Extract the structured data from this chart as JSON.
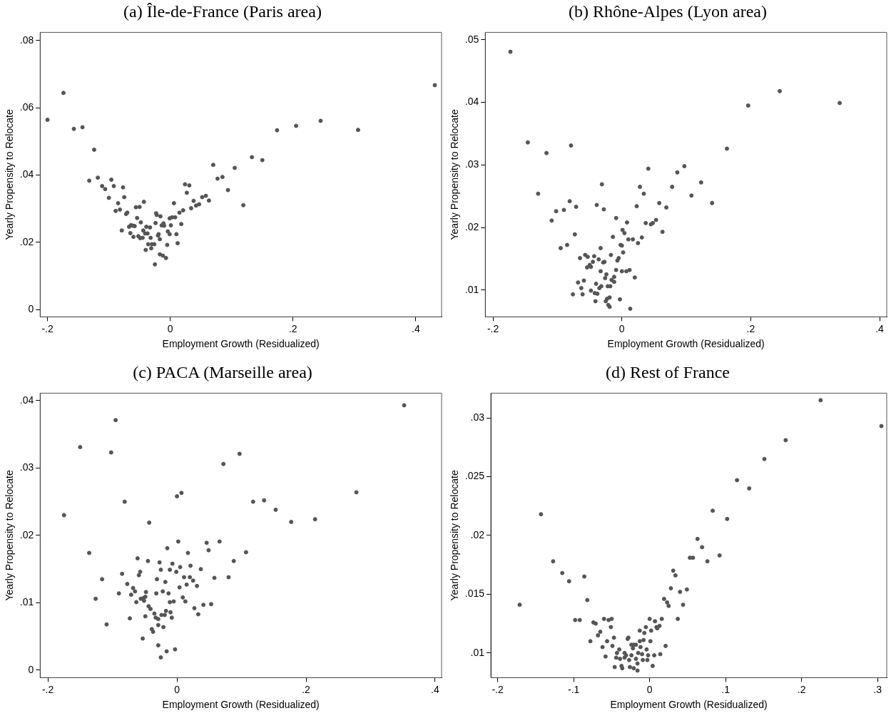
{
  "chart_data": [
    {
      "type": "scatter",
      "title": "(a) Île-de-France (Paris area)",
      "xlabel": "Employment Growth (Residualized)",
      "ylabel": "Yearly Propensity to Relocate",
      "color": "#555555",
      "marker": "circle",
      "xlim": [
        -0.212,
        0.442
      ],
      "ylim": [
        -0.0022,
        0.0824
      ],
      "xticks": [
        {
          "value": -0.2,
          "label": "-.2"
        },
        {
          "value": 0,
          "label": "0"
        },
        {
          "value": 0.2,
          "label": ".2"
        },
        {
          "value": 0.4,
          "label": ".4"
        }
      ],
      "yticks": [
        {
          "value": 0,
          "label": "0"
        },
        {
          "value": 0.02,
          "label": ".02"
        },
        {
          "value": 0.04,
          "label": ".04"
        },
        {
          "value": 0.06,
          "label": ".06"
        },
        {
          "value": 0.08,
          "label": ".08"
        }
      ],
      "x": [
        -0.2,
        -0.174,
        -0.157,
        -0.143,
        -0.124,
        -0.132,
        -0.118,
        -0.096,
        -0.111,
        -0.106,
        -0.092,
        -0.077,
        -0.1,
        -0.075,
        -0.085,
        -0.089,
        -0.082,
        -0.072,
        -0.07,
        -0.056,
        -0.05,
        -0.043,
        -0.054,
        -0.048,
        -0.079,
        -0.067,
        -0.064,
        -0.061,
        -0.058,
        -0.065,
        -0.06,
        -0.052,
        -0.049,
        -0.045,
        -0.044,
        -0.041,
        -0.037,
        -0.039,
        -0.033,
        -0.032,
        -0.036,
        -0.03,
        -0.026,
        -0.031,
        -0.04,
        -0.023,
        -0.022,
        -0.016,
        -0.024,
        -0.014,
        -0.011,
        -0.01,
        -0.02,
        -0.019,
        -0.017,
        -0.017,
        -0.012,
        -0.007,
        -0.025,
        -0.005,
        -0.004,
        -0.001,
        0.001,
        -0.001,
        0.003,
        0.008,
        0.006,
        0.01,
        0.012,
        0.015,
        0.018,
        0.021,
        0.024,
        0.031,
        0.027,
        0.034,
        0.038,
        0.042,
        0.047,
        0.052,
        0.058,
        0.063,
        0.07,
        0.077,
        0.085,
        0.094,
        0.105,
        0.119,
        0.133,
        0.15,
        0.174,
        0.205,
        0.245,
        0.306,
        0.431
      ],
      "values": [
        0.0564,
        0.0644,
        0.0537,
        0.0542,
        0.0475,
        0.0383,
        0.0392,
        0.0386,
        0.0367,
        0.0358,
        0.0367,
        0.0363,
        0.0332,
        0.0334,
        0.0316,
        0.0293,
        0.0297,
        0.0284,
        0.0288,
        0.0304,
        0.0305,
        0.032,
        0.0272,
        0.0259,
        0.0235,
        0.0246,
        0.0251,
        0.0249,
        0.0248,
        0.0227,
        0.0216,
        0.0218,
        0.0212,
        0.0213,
        0.0235,
        0.0226,
        0.0226,
        0.0246,
        0.0244,
        0.0213,
        0.0194,
        0.0194,
        0.0194,
        0.0182,
        0.0177,
        0.0286,
        0.0281,
        0.0277,
        0.0257,
        0.025,
        0.0256,
        0.0249,
        0.022,
        0.0224,
        0.0209,
        0.0164,
        0.016,
        0.0153,
        0.0134,
        0.0192,
        0.0232,
        0.0224,
        0.025,
        0.0271,
        0.0274,
        0.0274,
        0.0316,
        0.0224,
        0.0197,
        0.0288,
        0.0254,
        0.0295,
        0.0372,
        0.0369,
        0.0347,
        0.0301,
        0.0323,
        0.0309,
        0.0313,
        0.0334,
        0.0338,
        0.0324,
        0.043,
        0.0389,
        0.0394,
        0.0355,
        0.0421,
        0.031,
        0.0453,
        0.0444,
        0.0533,
        0.0546,
        0.0561,
        0.0534,
        0.0667
      ]
    },
    {
      "type": "scatter",
      "title": "(b) Rhône-Alpes (Lyon area)",
      "xlabel": "Employment Growth (Residualized)",
      "ylabel": "Yearly Propensity to Relocate",
      "color": "#555555",
      "marker": "circle",
      "xlim": [
        -0.212,
        0.411
      ],
      "ylim": [
        0.0057,
        0.0512
      ],
      "xticks": [
        {
          "value": -0.2,
          "label": "-.2"
        },
        {
          "value": 0,
          "label": "0"
        },
        {
          "value": 0.2,
          "label": ".2"
        },
        {
          "value": 0.4,
          "label": ".4"
        }
      ],
      "yticks": [
        {
          "value": 0.01,
          "label": ".01"
        },
        {
          "value": 0.02,
          "label": ".02"
        },
        {
          "value": 0.03,
          "label": ".03"
        },
        {
          "value": 0.04,
          "label": ".04"
        },
        {
          "value": 0.05,
          "label": ".05"
        }
      ],
      "x": [
        -0.173,
        -0.146,
        -0.117,
        -0.079,
        -0.13,
        -0.102,
        -0.09,
        -0.081,
        -0.071,
        -0.109,
        -0.073,
        -0.095,
        -0.085,
        -0.031,
        -0.039,
        -0.028,
        -0.009,
        0.008,
        0.001,
        0.004,
        -0.014,
        -0.002,
        0.0,
        0.002,
        0.01,
        0.017,
        0.025,
        0.031,
        0.023,
        0.028,
        0.034,
        0.041,
        0.037,
        0.045,
        0.048,
        0.053,
        0.058,
        0.063,
        0.069,
        0.078,
        0.086,
        0.097,
        0.108,
        0.123,
        0.14,
        0.163,
        0.196,
        0.245,
        0.338,
        -0.065,
        -0.057,
        -0.053,
        -0.043,
        -0.036,
        -0.033,
        -0.029,
        -0.027,
        -0.017,
        -0.007,
        -0.005,
        -0.045,
        -0.05,
        -0.054,
        -0.048,
        -0.033,
        -0.024,
        -0.009,
        0.0,
        0.007,
        0.012,
        0.02,
        -0.026,
        -0.012,
        -0.016,
        -0.012,
        -0.068,
        -0.059,
        -0.04,
        -0.063,
        -0.048,
        -0.035,
        -0.032,
        -0.022,
        -0.018,
        -0.076,
        -0.061,
        -0.042,
        -0.038,
        -0.041,
        -0.025,
        -0.023,
        -0.019,
        -0.003,
        -0.021,
        -0.019,
        0.013
      ],
      "values": [
        0.0481,
        0.0336,
        0.0319,
        0.0331,
        0.0254,
        0.0226,
        0.0228,
        0.0242,
        0.0233,
        0.0211,
        0.0189,
        0.0167,
        0.0172,
        0.0269,
        0.0236,
        0.0229,
        0.0215,
        0.0208,
        0.0196,
        0.0191,
        0.0185,
        0.0172,
        0.0171,
        0.016,
        0.0181,
        0.0181,
        0.0175,
        0.0184,
        0.0234,
        0.0265,
        0.0254,
        0.0294,
        0.0207,
        0.0205,
        0.0207,
        0.0212,
        0.0239,
        0.0193,
        0.0232,
        0.0265,
        0.0288,
        0.0298,
        0.0251,
        0.0272,
        0.0239,
        0.0326,
        0.0395,
        0.0418,
        0.0399,
        0.0151,
        0.0156,
        0.0153,
        0.0154,
        0.0149,
        0.0167,
        0.0144,
        0.0145,
        0.0156,
        0.0147,
        0.0151,
        0.0145,
        0.014,
        0.0136,
        0.0137,
        0.013,
        0.0125,
        0.0132,
        0.013,
        0.013,
        0.0132,
        0.012,
        0.0119,
        0.0121,
        0.0116,
        0.0113,
        0.0112,
        0.0115,
        0.011,
        0.0103,
        0.0099,
        0.0103,
        0.0106,
        0.0106,
        0.0106,
        0.0093,
        0.0093,
        0.0095,
        0.0094,
        0.0082,
        0.0082,
        0.0086,
        0.0088,
        0.0085,
        0.0076,
        0.0073,
        0.007
      ]
    },
    {
      "type": "scatter",
      "title": "(c) PACA (Marseille area)",
      "xlabel": "Employment Growth (Residualized)",
      "ylabel": "Yearly Propensity to Relocate",
      "color": "#555555",
      "marker": "circle",
      "xlim": [
        -0.212,
        0.41
      ],
      "ylim": [
        -0.0011,
        0.0411
      ],
      "xticks": [
        {
          "value": -0.2,
          "label": "-.2"
        },
        {
          "value": 0,
          "label": "0"
        },
        {
          "value": 0.2,
          "label": ".2"
        },
        {
          "value": 0.4,
          "label": ".4"
        }
      ],
      "yticks": [
        {
          "value": 0,
          "label": "0"
        },
        {
          "value": 0.01,
          "label": ".01"
        },
        {
          "value": 0.02,
          "label": ".02"
        },
        {
          "value": 0.03,
          "label": ".03"
        },
        {
          "value": 0.04,
          "label": ".04"
        }
      ],
      "x": [
        0.352,
        -0.095,
        -0.15,
        -0.102,
        0.097,
        0.072,
        0.007,
        0.0,
        -0.081,
        0.278,
        0.118,
        0.135,
        0.153,
        0.177,
        0.214,
        -0.175,
        -0.043,
        0.002,
        0.066,
        0.046,
        0.049,
        -0.015,
        0.017,
        0.107,
        -0.136,
        -0.061,
        -0.045,
        -0.027,
        -0.007,
        0.021,
        0.005,
        0.088,
        0.037,
        -0.025,
        -0.011,
        -0.001,
        -0.057,
        -0.059,
        -0.085,
        0.011,
        0.02,
        0.025,
        0.058,
        0.08,
        -0.031,
        -0.018,
        -0.116,
        -0.077,
        -0.068,
        -0.065,
        -0.071,
        -0.09,
        -0.048,
        -0.032,
        -0.022,
        -0.013,
        0.004,
        0.015,
        0.031,
        -0.126,
        -0.056,
        -0.052,
        -0.049,
        -0.051,
        -0.063,
        -0.011,
        -0.005,
        0.009,
        0.013,
        -0.044,
        -0.041,
        -0.035,
        -0.017,
        -0.01,
        -0.024,
        -0.019,
        -0.008,
        -0.033,
        -0.029,
        -0.049,
        -0.073,
        0.027,
        0.041,
        0.053,
        0.033,
        -0.109,
        -0.029,
        -0.021,
        -0.039,
        -0.037,
        -0.053,
        -0.029,
        -0.016,
        -0.003,
        -0.025
      ],
      "values": [
        0.0393,
        0.0371,
        0.0331,
        0.0323,
        0.0321,
        0.0306,
        0.0263,
        0.0258,
        0.025,
        0.0264,
        0.025,
        0.0252,
        0.0238,
        0.022,
        0.0224,
        0.023,
        0.0219,
        0.0191,
        0.0191,
        0.0189,
        0.0178,
        0.0181,
        0.0174,
        0.0175,
        0.0174,
        0.0166,
        0.0162,
        0.016,
        0.0158,
        0.0155,
        0.0153,
        0.0162,
        0.015,
        0.0149,
        0.0149,
        0.0146,
        0.0146,
        0.0141,
        0.0143,
        0.0138,
        0.0138,
        0.0133,
        0.0137,
        0.0138,
        0.0135,
        0.0131,
        0.0135,
        0.0128,
        0.0122,
        0.0117,
        0.0112,
        0.0114,
        0.0116,
        0.0114,
        0.0117,
        0.0114,
        0.0123,
        0.0127,
        0.0125,
        0.0106,
        0.0106,
        0.0107,
        0.0109,
        0.0103,
        0.0101,
        0.0101,
        0.0102,
        0.0108,
        0.0102,
        0.0095,
        0.0091,
        0.0084,
        0.0088,
        0.0086,
        0.0082,
        0.0082,
        0.0078,
        0.0078,
        0.0076,
        0.008,
        0.0077,
        0.0092,
        0.0097,
        0.0098,
        0.0083,
        0.0068,
        0.0067,
        0.0064,
        0.0061,
        0.0057,
        0.0047,
        0.0037,
        0.0028,
        0.0031,
        0.0019
      ]
    },
    {
      "type": "scatter",
      "title": "(d) Rest of France",
      "xlabel": "Employment Growth (Residualized)",
      "ylabel": "Yearly Propensity to Relocate",
      "color": "#555555",
      "marker": "circle",
      "xlim": [
        -0.209,
        0.312
      ],
      "ylim": [
        0.0079,
        0.0321
      ],
      "xticks": [
        {
          "value": -0.2,
          "label": "-.2"
        },
        {
          "value": -0.1,
          "label": "-.1"
        },
        {
          "value": 0,
          "label": "0"
        },
        {
          "value": 0.1,
          "label": ".1"
        },
        {
          "value": 0.2,
          "label": ".2"
        },
        {
          "value": 0.3,
          "label": ".3"
        }
      ],
      "yticks": [
        {
          "value": 0.01,
          "label": ".01"
        },
        {
          "value": 0.015,
          "label": ".015"
        },
        {
          "value": 0.02,
          "label": ".02"
        },
        {
          "value": 0.025,
          "label": ".025"
        },
        {
          "value": 0.03,
          "label": ".03"
        }
      ],
      "x": [
        0.225,
        0.305,
        0.179,
        0.151,
        0.115,
        0.131,
        0.083,
        0.102,
        0.063,
        0.069,
        0.053,
        0.057,
        0.076,
        0.092,
        0.031,
        0.034,
        0.028,
        0.04,
        0.049,
        0.019,
        0.023,
        0.025,
        0.044,
        0.037,
        0.016,
        -0.143,
        -0.171,
        -0.127,
        -0.115,
        -0.106,
        -0.086,
        -0.082,
        -0.098,
        -0.092,
        -0.074,
        -0.071,
        -0.06,
        -0.054,
        -0.05,
        -0.051,
        -0.065,
        -0.068,
        -0.078,
        -0.056,
        -0.047,
        -0.062,
        -0.049,
        -0.058,
        -0.04,
        -0.043,
        -0.044,
        -0.039,
        -0.033,
        -0.031,
        -0.033,
        -0.027,
        -0.024,
        -0.018,
        -0.029,
        -0.028,
        -0.024,
        -0.021,
        -0.018,
        -0.022,
        -0.013,
        -0.008,
        0.001,
        -0.012,
        -0.004,
        -0.015,
        -0.01,
        -0.002,
        0.006,
        0.014,
        -0.003,
        -0.009,
        -0.016,
        0.004,
        -0.021,
        -0.016,
        -0.026,
        -0.036,
        -0.037,
        -0.046,
        -0.013,
        -0.005,
        -0.007,
        0.002,
        0.0,
        0.007,
        0.009,
        0.01,
        0.013,
        0.021
      ],
      "values": [
        0.0315,
        0.0293,
        0.0281,
        0.0265,
        0.0247,
        0.024,
        0.0221,
        0.0214,
        0.0197,
        0.019,
        0.0181,
        0.0181,
        0.0178,
        0.0183,
        0.017,
        0.0166,
        0.0155,
        0.0152,
        0.0154,
        0.0146,
        0.0143,
        0.014,
        0.0141,
        0.0129,
        0.0129,
        0.0218,
        0.0141,
        0.0178,
        0.0168,
        0.0161,
        0.0165,
        0.0145,
        0.0128,
        0.0128,
        0.0126,
        0.0125,
        0.0129,
        0.0128,
        0.0129,
        0.0122,
        0.0118,
        0.0115,
        0.011,
        0.011,
        0.0113,
        0.0105,
        0.0106,
        0.0097,
        0.0103,
        0.01,
        0.0096,
        0.0095,
        0.01,
        0.0098,
        0.0096,
        0.0094,
        0.0098,
        0.0095,
        0.0112,
        0.0113,
        0.0107,
        0.0107,
        0.0107,
        0.0104,
        0.011,
        0.0111,
        0.011,
        0.0105,
        0.0103,
        0.01,
        0.0099,
        0.0098,
        0.0098,
        0.0099,
        0.0094,
        0.0094,
        0.0091,
        0.0089,
        0.0087,
        0.0085,
        0.0088,
        0.0087,
        0.0089,
        0.0088,
        0.0119,
        0.0122,
        0.0117,
        0.0119,
        0.0129,
        0.0127,
        0.0122,
        0.0121,
        0.0123,
        0.0106
      ]
    }
  ]
}
